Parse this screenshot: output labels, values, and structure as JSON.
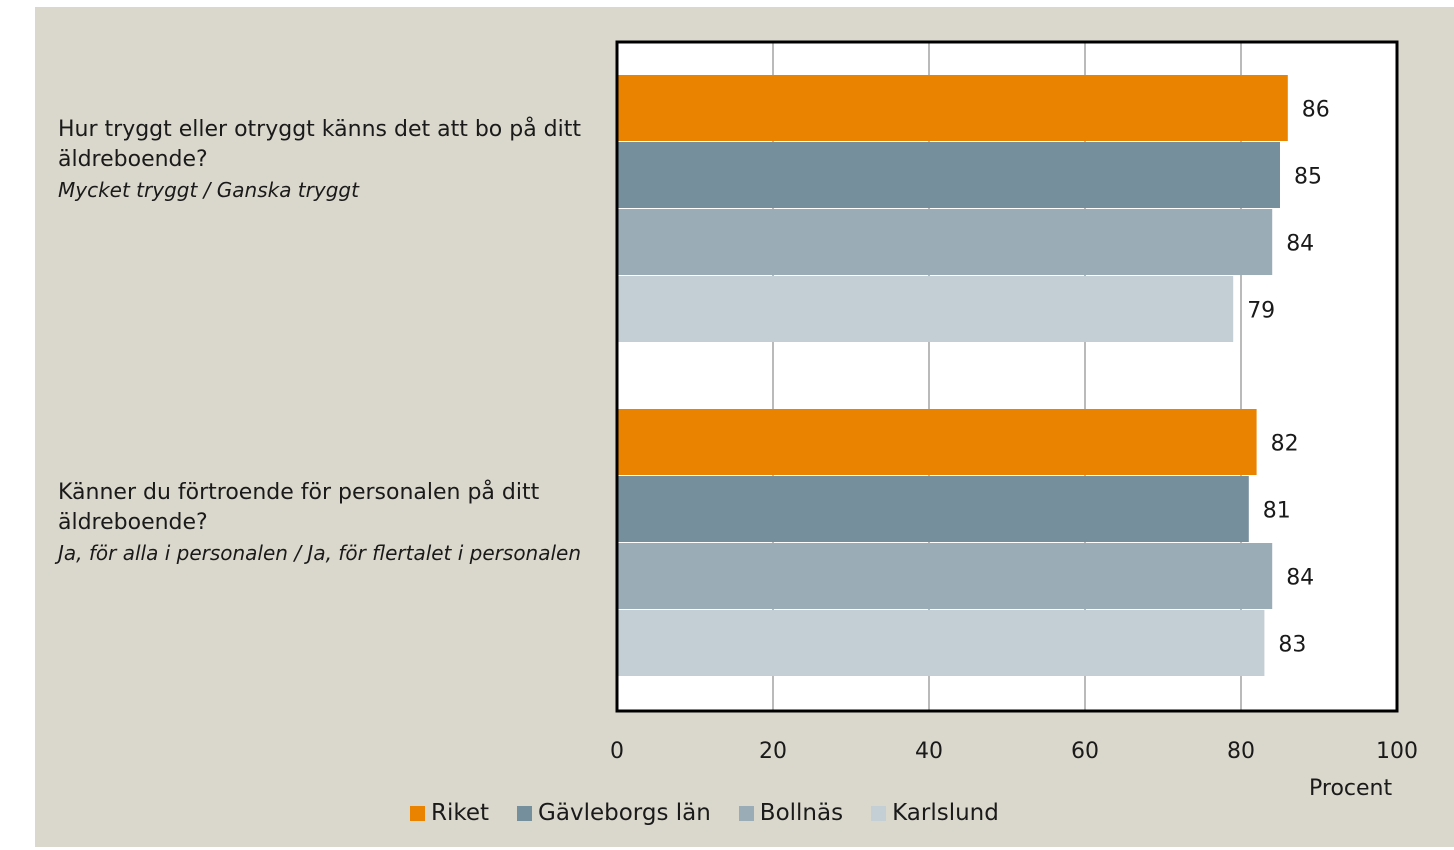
{
  "chart_data": {
    "type": "bar",
    "orientation": "horizontal",
    "xlabel": "Procent",
    "xlim": [
      0,
      100
    ],
    "xticks": [
      0,
      20,
      40,
      60,
      80,
      100
    ],
    "grid": true,
    "legend_position": "bottom",
    "categories": [
      {
        "question": "Hur tryggt eller otryggt känns det att bo på ditt äldreboende?",
        "answer": "Mycket tryggt / Ganska tryggt"
      },
      {
        "question": "Känner du förtroende för personalen på ditt äldreboende?",
        "answer": "Ja, för alla i personalen / Ja, för flertalet i personalen"
      }
    ],
    "series": [
      {
        "name": "Riket",
        "color": "#e98300",
        "values": [
          86,
          82
        ]
      },
      {
        "name": "Gävleborgs län",
        "color": "#758f9c",
        "values": [
          85,
          81
        ]
      },
      {
        "name": "Bollnäs",
        "color": "#9aadb7",
        "values": [
          84,
          84
        ]
      },
      {
        "name": "Karlslund",
        "color": "#c4ced5",
        "values": [
          79,
          83
        ]
      }
    ]
  }
}
